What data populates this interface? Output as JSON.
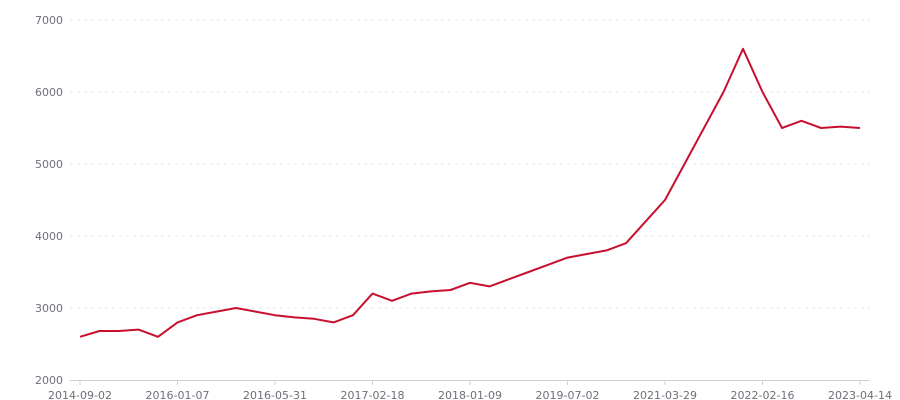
{
  "chart_data": {
    "type": "line",
    "title": "",
    "xlabel": "",
    "ylabel": "",
    "ylim": [
      2000,
      7000
    ],
    "y_ticks": [
      2000,
      3000,
      4000,
      5000,
      6000,
      7000
    ],
    "x_tick_labels": [
      "2014-09-02",
      "2016-01-07",
      "2016-05-31",
      "2017-02-18",
      "2018-01-09",
      "2019-07-02",
      "2021-03-29",
      "2022-02-16",
      "2023-04-14"
    ],
    "x_tick_every": 5,
    "grid": "horizontal dashed",
    "line_color": "#c8102e",
    "series": [
      {
        "values": [
          2600,
          2680,
          2680,
          2700,
          2600,
          2800,
          2900,
          2950,
          3000,
          2950,
          2900,
          2870,
          2850,
          2800,
          2900,
          3200,
          3100,
          3200,
          3230,
          3250,
          3350,
          3300,
          3400,
          3500,
          3600,
          3700,
          3750,
          3800,
          3900,
          4200,
          4500,
          5000,
          5500,
          6000,
          6600,
          6000,
          5500,
          5600,
          5500,
          5520,
          5500
        ]
      }
    ]
  }
}
